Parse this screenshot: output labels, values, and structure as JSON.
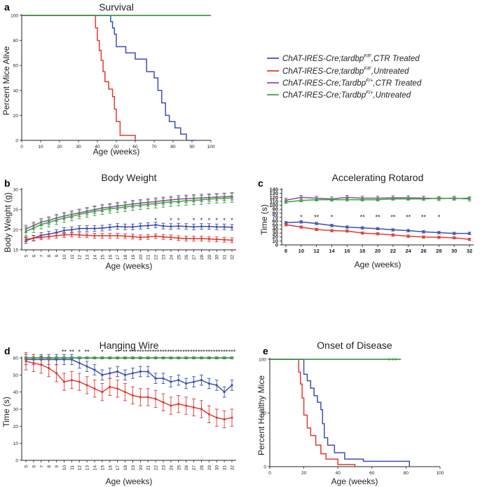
{
  "legend": {
    "entries": [
      {
        "prefix": "ChAT-IRES-Cre;tardbp",
        "sup": "F/F",
        "suffix": ",CTR Treated",
        "color": "#3c4fb4"
      },
      {
        "prefix": "ChAT-IRES-Cre;tardbp",
        "sup": "F/F",
        "suffix": ",Untreated",
        "color": "#e03a31"
      },
      {
        "prefix": "ChAT-IRES-Cre;Tardbp",
        "sup": "F/+",
        "suffix": ",CTR Treated",
        "color": "#8a4fa0"
      },
      {
        "prefix": "ChAT-IRES-Cre;Tardbp",
        "sup": "F/+",
        "suffix": ",Untreated",
        "color": "#3ba33b"
      }
    ]
  },
  "chart_data": [
    {
      "id": "a",
      "panel_label": "a",
      "type": "line",
      "step": true,
      "title": "Survival",
      "xlabel": "Age (weeks)",
      "ylabel": "Percent Mice Alive",
      "xlim": [
        0,
        100
      ],
      "ylim": [
        0,
        100
      ],
      "xticks": [
        0,
        10,
        20,
        30,
        40,
        50,
        60,
        70,
        80,
        90,
        100
      ],
      "yticks": [
        0,
        20,
        40,
        60,
        80,
        100
      ],
      "series": [
        {
          "name": "ChAT-IRES-Cre;tardbpF/F,CTR Treated",
          "color": "#3c4fb4",
          "x": [
            0,
            46,
            47,
            48,
            49,
            50,
            55,
            60,
            66,
            70,
            72,
            74,
            76,
            78,
            81,
            84,
            87,
            92
          ],
          "y": [
            100,
            100,
            95,
            90,
            85,
            75,
            70,
            65,
            55,
            50,
            40,
            30,
            20,
            15,
            10,
            5,
            0,
            0
          ]
        },
        {
          "name": "ChAT-IRES-Cre;tardbpF/F,Untreated",
          "color": "#e03a31",
          "x": [
            0,
            38,
            39,
            40,
            41,
            42,
            43,
            44,
            46,
            48,
            49,
            50,
            52,
            60
          ],
          "y": [
            100,
            100,
            90,
            80,
            72,
            64,
            55,
            47,
            41,
            35,
            25,
            15,
            4,
            0
          ]
        },
        {
          "name": "ChAT-IRES-Cre;TardbpF/+,CTR Treated",
          "color": "#8a4fa0",
          "x": [
            0,
            100
          ],
          "y": [
            100,
            100
          ]
        },
        {
          "name": "ChAT-IRES-Cre;TardbpF/+,Untreated",
          "color": "#3ba33b",
          "x": [
            0,
            100
          ],
          "y": [
            100,
            100
          ]
        }
      ]
    },
    {
      "id": "b",
      "panel_label": "b",
      "type": "line",
      "errorbars": true,
      "title": "Body Weight",
      "xlabel": "Age (weeks)",
      "ylabel": "Body Weight (g)",
      "ylim": [
        15,
        30
      ],
      "yticks": [
        15,
        20,
        25,
        30
      ],
      "x": [
        5,
        6,
        7,
        8,
        9,
        10,
        11,
        12,
        13,
        14,
        15,
        16,
        17,
        18,
        19,
        20,
        21,
        22,
        23,
        24,
        25,
        26,
        27,
        28,
        29,
        30,
        31,
        32
      ],
      "series": [
        {
          "name": "CTR Treated F/F",
          "color": "#3c4fb4",
          "err": 0.7,
          "values": [
            17.3,
            17.9,
            18.6,
            18.9,
            19.3,
            19.8,
            20.0,
            20.3,
            20.3,
            20.3,
            20.4,
            20.6,
            20.8,
            20.7,
            20.7,
            20.9,
            21.0,
            21.2,
            20.9,
            20.8,
            20.9,
            20.8,
            20.7,
            20.8,
            20.8,
            20.7,
            20.7,
            20.6
          ]
        },
        {
          "name": "Untreated F/F",
          "color": "#e03a31",
          "err": 0.6,
          "values": [
            17.6,
            17.9,
            18.1,
            18.3,
            18.5,
            18.7,
            18.8,
            18.7,
            18.6,
            18.5,
            18.5,
            18.5,
            18.5,
            18.4,
            18.3,
            18.1,
            18.2,
            18.4,
            18.2,
            18.1,
            17.9,
            17.8,
            17.8,
            17.8,
            17.7,
            17.6,
            17.5,
            17.4
          ]
        },
        {
          "name": "CTR Treated F/+",
          "color": "#8a4fa0",
          "err": 0.9,
          "values": [
            20.2,
            21.0,
            21.9,
            22.3,
            22.9,
            23.4,
            23.8,
            24.2,
            24.6,
            25.0,
            25.4,
            25.6,
            25.9,
            26.1,
            26.4,
            26.6,
            26.8,
            27.0,
            27.2,
            27.4,
            27.6,
            27.7,
            27.8,
            27.9,
            28.0,
            28.1,
            28.2,
            28.3
          ]
        },
        {
          "name": "Untreated F/+",
          "color": "#3ba33b",
          "err": 1.1,
          "values": [
            19.6,
            20.4,
            21.3,
            21.8,
            22.4,
            22.9,
            23.3,
            23.8,
            24.2,
            24.6,
            24.9,
            25.2,
            25.4,
            25.6,
            25.9,
            26.1,
            26.3,
            26.5,
            26.7,
            26.9,
            27.0,
            27.2,
            27.3,
            27.4,
            27.6,
            27.7,
            27.8,
            27.9
          ]
        }
      ],
      "annotations": [
        {
          "x": 22,
          "text": "*"
        },
        {
          "x": 24,
          "text": "*"
        },
        {
          "x": 25,
          "text": "*"
        },
        {
          "x": 27,
          "text": "*"
        },
        {
          "x": 28,
          "text": "*"
        },
        {
          "x": 29,
          "text": "*"
        },
        {
          "x": 30,
          "text": "*"
        },
        {
          "x": 31,
          "text": "*"
        },
        {
          "x": 32,
          "text": "*"
        }
      ],
      "annotation_y": 22.3
    },
    {
      "id": "c",
      "panel_label": "c",
      "type": "line",
      "errorbars": true,
      "title": "Accelerating Rotarod",
      "xlabel": "Age (weeks)",
      "ylabel": "Time (s)",
      "ylim": [
        0,
        140
      ],
      "yticks": [
        0,
        10,
        20,
        30,
        40,
        50,
        60,
        70,
        80,
        90,
        100,
        110,
        120,
        130,
        140
      ],
      "x": [
        8,
        10,
        12,
        14,
        16,
        18,
        20,
        22,
        24,
        26,
        28,
        30,
        32
      ],
      "series": [
        {
          "name": "CTR Treated F/F",
          "color": "#3c4fb4",
          "err": 3,
          "values": [
            56,
            58,
            54,
            49,
            45,
            43,
            41,
            38,
            36,
            33,
            31,
            29,
            29
          ]
        },
        {
          "name": "Untreated F/F",
          "color": "#e03a31",
          "err": 3,
          "values": [
            51,
            45,
            39,
            36,
            35,
            30,
            28,
            25,
            22,
            20,
            19,
            18,
            14
          ]
        },
        {
          "name": "CTR Treated F/+",
          "color": "#8a4fa0",
          "err": 5,
          "values": [
            113,
            120,
            118,
            116,
            120,
            118,
            118,
            119,
            119,
            118,
            117,
            118,
            116
          ]
        },
        {
          "name": "Untreated F/+",
          "color": "#3ba33b",
          "err": 3,
          "values": [
            108,
            112,
            114,
            114,
            114,
            114,
            114,
            116,
            116,
            116,
            118,
            117,
            118
          ]
        }
      ],
      "annotations": [
        {
          "x": 10,
          "text": "*"
        },
        {
          "x": 12,
          "text": "**"
        },
        {
          "x": 14,
          "text": "*"
        },
        {
          "x": 18,
          "text": "**"
        },
        {
          "x": 20,
          "text": "**"
        },
        {
          "x": 22,
          "text": "**"
        },
        {
          "x": 24,
          "text": "**"
        },
        {
          "x": 26,
          "text": "**"
        },
        {
          "x": 28,
          "text": "*"
        }
      ],
      "annotation_y": 70
    },
    {
      "id": "d",
      "panel_label": "d",
      "type": "line",
      "errorbars": true,
      "title": "Hanging Wire",
      "xlabel": "Age (weeks)",
      "ylabel": "Time (s)",
      "ylim": [
        0,
        60
      ],
      "yticks": [
        0,
        10,
        20,
        30,
        40,
        50,
        60
      ],
      "x": [
        5,
        6,
        7,
        8,
        9,
        10,
        11,
        12,
        13,
        14,
        15,
        16,
        17,
        18,
        19,
        20,
        21,
        22,
        23,
        24,
        25,
        26,
        27,
        28,
        29,
        30,
        31,
        32
      ],
      "series": [
        {
          "name": "CTR Treated F/F",
          "color": "#3c4fb4",
          "err": 3,
          "values": [
            59,
            59,
            59,
            59,
            59,
            59,
            59,
            57,
            55,
            53,
            50,
            51,
            52,
            50,
            51,
            52,
            52,
            48,
            48,
            46,
            47,
            45,
            46,
            47,
            45,
            44,
            40,
            44
          ]
        },
        {
          "name": "Untreated F/F",
          "color": "#e03a31",
          "err": 5,
          "values": [
            58,
            57,
            56,
            54,
            51,
            46,
            47,
            46,
            44,
            42,
            40,
            43,
            42,
            40,
            38,
            37,
            37,
            36,
            34,
            32,
            33,
            32,
            31,
            30,
            27,
            25,
            24,
            25
          ]
        },
        {
          "name": "CTR Treated F/+",
          "color": "#8a4fa0",
          "err": 0.6,
          "values": [
            60,
            60,
            60,
            60,
            60,
            60,
            60,
            60,
            60,
            60,
            60,
            60,
            60,
            60,
            60,
            60,
            60,
            60,
            60,
            60,
            60,
            60,
            60,
            60,
            60,
            60,
            60,
            60
          ]
        },
        {
          "name": "Untreated F/+",
          "color": "#3ba33b",
          "err": 0.4,
          "values": [
            60,
            60,
            60,
            60,
            60,
            60,
            60,
            60,
            60,
            60,
            60,
            60,
            60,
            60,
            60,
            60,
            60,
            60,
            60,
            60,
            60,
            60,
            60,
            60,
            60,
            60,
            60,
            60
          ]
        }
      ],
      "annotations": [
        {
          "x": 10,
          "text": "**"
        },
        {
          "x": 11,
          "text": "**"
        },
        {
          "x": 12,
          "text": "*"
        },
        {
          "x": 13,
          "text": "**"
        },
        {
          "x": 15,
          "text": "*"
        },
        {
          "x": 17,
          "text": "**"
        },
        {
          "x": 18,
          "text": "**"
        },
        {
          "x": 19,
          "text": "***"
        },
        {
          "x": 20,
          "text": "***"
        },
        {
          "x": 21,
          "text": "***"
        },
        {
          "x": 22,
          "text": "***"
        },
        {
          "x": 23,
          "text": "***"
        },
        {
          "x": 24,
          "text": "***"
        },
        {
          "x": 25,
          "text": "***"
        },
        {
          "x": 26,
          "text": "***"
        },
        {
          "x": 27,
          "text": "***"
        },
        {
          "x": 28,
          "text": "***"
        },
        {
          "x": 29,
          "text": "***"
        },
        {
          "x": 30,
          "text": "***"
        },
        {
          "x": 31,
          "text": "***"
        },
        {
          "x": 32,
          "text": "***"
        }
      ],
      "annotation_y": 63.5
    },
    {
      "id": "e",
      "panel_label": "e",
      "type": "line",
      "step": true,
      "title": "Onset of Disease",
      "xlabel": "Age (weeks)",
      "ylabel": "Percent Healthy Mice",
      "xlim": [
        0,
        100
      ],
      "ylim": [
        0,
        100
      ],
      "xticks": [
        0,
        20,
        40,
        60,
        80,
        100
      ],
      "yticks": [
        0,
        50,
        100
      ],
      "series": [
        {
          "name": "ChAT-IRES-Cre;tardbpF/F,CTR Treated",
          "color": "#3c4fb4",
          "x": [
            0,
            17,
            20,
            22,
            24,
            26,
            28,
            30,
            31,
            32,
            34,
            38,
            44,
            55,
            77,
            82
          ],
          "y": [
            100,
            100,
            86,
            80,
            73,
            66,
            60,
            53,
            40,
            27,
            20,
            13,
            7,
            5,
            5,
            0
          ]
        },
        {
          "name": "ChAT-IRES-Cre;tardbpF/F,Untreated",
          "color": "#e03a31",
          "x": [
            0,
            16,
            17,
            18,
            19,
            20,
            22,
            24,
            27,
            30,
            33,
            40,
            50
          ],
          "y": [
            100,
            100,
            88,
            77,
            64,
            48,
            36,
            29,
            20,
            12,
            7,
            2,
            0
          ]
        },
        {
          "name": "ChAT-IRES-Cre;TardbpF/+,CTR Treated",
          "color": "#8a4fa0",
          "x": [
            0,
            77
          ],
          "y": [
            100,
            100
          ]
        },
        {
          "name": "ChAT-IRES-Cre;TardbpF/+,Untreated",
          "color": "#3ba33b",
          "x": [
            0,
            77
          ],
          "y": [
            100,
            100
          ]
        }
      ]
    }
  ]
}
